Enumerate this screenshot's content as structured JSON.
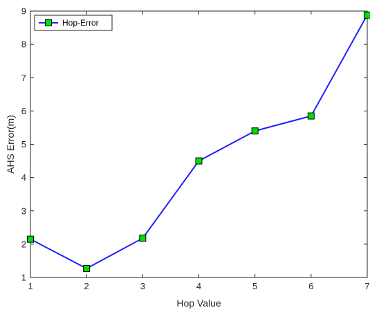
{
  "chart_data": {
    "type": "line",
    "x": [
      1,
      2,
      3,
      4,
      5,
      6,
      7
    ],
    "series": [
      {
        "name": "Hop-Error",
        "values": [
          2.15,
          1.27,
          2.18,
          4.5,
          5.4,
          5.85,
          8.88
        ],
        "line_color": "#1f1fff",
        "marker": "square",
        "marker_fill": "#00e000",
        "marker_edge": "#000000"
      }
    ],
    "xlabel": "Hop Value",
    "ylabel": "AHS Error(m)",
    "xlim": [
      1,
      7
    ],
    "ylim": [
      1,
      9
    ],
    "xticks": [
      "1",
      "2",
      "3",
      "4",
      "5",
      "6",
      "7"
    ],
    "yticks": [
      "1",
      "2",
      "3",
      "4",
      "5",
      "6",
      "7",
      "8",
      "9"
    ],
    "grid": false,
    "legend_position": "top-left"
  }
}
